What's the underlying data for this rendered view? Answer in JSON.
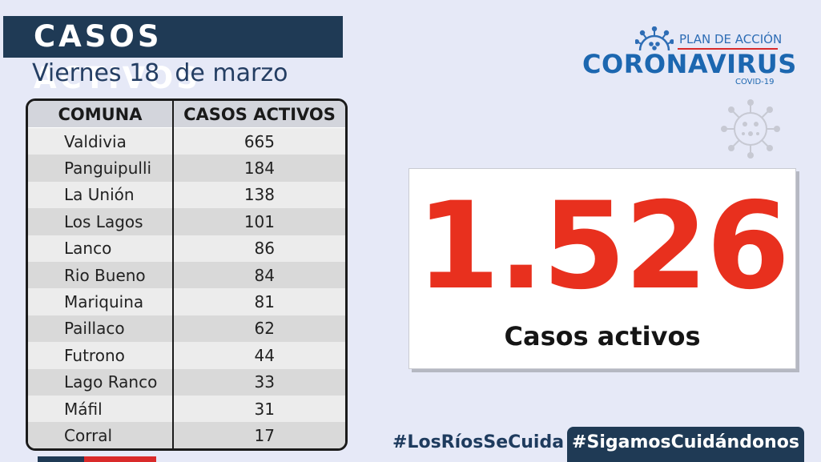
{
  "header": {
    "title": "CASOS ACTIVOS",
    "date": "Viernes 18  de marzo"
  },
  "table": {
    "columns": [
      "COMUNA",
      "CASOS ACTIVOS"
    ],
    "rows": [
      {
        "comuna": "Valdivia",
        "casos": "665"
      },
      {
        "comuna": "Panguipulli",
        "casos": "184"
      },
      {
        "comuna": "La Unión",
        "casos": "138"
      },
      {
        "comuna": "Los Lagos",
        "casos": "101"
      },
      {
        "comuna": "Lanco",
        "casos": "86"
      },
      {
        "comuna": "Rio Bueno",
        "casos": "84"
      },
      {
        "comuna": "Mariquina",
        "casos": "81"
      },
      {
        "comuna": "Paillaco",
        "casos": "62"
      },
      {
        "comuna": "Futrono",
        "casos": "44"
      },
      {
        "comuna": "Lago Ranco",
        "casos": "33"
      },
      {
        "comuna": "Máfil",
        "casos": "31"
      },
      {
        "comuna": "Corral",
        "casos": "17"
      }
    ]
  },
  "logo": {
    "line1": "PLAN DE ACCIÓN",
    "line2": "CORONAVIRUS",
    "line3": "COVID-19",
    "icon": "coronavirus-icon"
  },
  "total": {
    "value": "1.526",
    "label": "Casos activos"
  },
  "footer": {
    "hashtag1": "#LosRíosSeCuida",
    "hashtag2": "#SigamosCuidándonos"
  },
  "colors": {
    "navy": "#1f3a55",
    "red": "#e8301e",
    "blue": "#1c67b0",
    "background": "#e6e9f7"
  }
}
